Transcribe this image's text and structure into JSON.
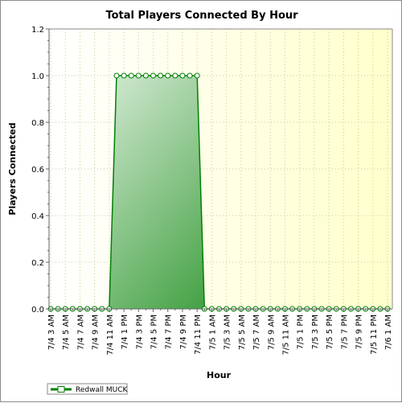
{
  "chart_data": {
    "type": "area",
    "title": "Total Players Connected By Hour",
    "xlabel": "Hour",
    "ylabel": "Players Connected",
    "ylim": [
      0,
      1.2
    ],
    "yticks": [
      "0.0",
      "0.2",
      "0.4",
      "0.6",
      "0.8",
      "1.0",
      "1.2"
    ],
    "grid": true,
    "legend_position": "bottom-left",
    "x": [
      "7/4 3 AM",
      "7/4 4 AM",
      "7/4 5 AM",
      "7/4 6 AM",
      "7/4 7 AM",
      "7/4 8 AM",
      "7/4 9 AM",
      "7/4 10 AM",
      "7/4 11 AM",
      "7/4 12 PM",
      "7/4 1 PM",
      "7/4 2 PM",
      "7/4 3 PM",
      "7/4 4 PM",
      "7/4 5 PM",
      "7/4 6 PM",
      "7/4 7 PM",
      "7/4 8 PM",
      "7/4 9 PM",
      "7/4 10 PM",
      "7/4 11 PM",
      "7/5 12 AM",
      "7/5 1 AM",
      "7/5 2 AM",
      "7/5 3 AM",
      "7/5 4 AM",
      "7/5 5 AM",
      "7/5 6 AM",
      "7/5 7 AM",
      "7/5 8 AM",
      "7/5 9 AM",
      "7/5 10 AM",
      "7/5 11 AM",
      "7/5 12 PM",
      "7/5 1 PM",
      "7/5 2 PM",
      "7/5 3 PM",
      "7/5 4 PM",
      "7/5 5 PM",
      "7/5 6 PM",
      "7/5 7 PM",
      "7/5 8 PM",
      "7/5 9 PM",
      "7/5 10 PM",
      "7/5 11 PM",
      "7/6 12 AM",
      "7/6 1 AM"
    ],
    "xtick_labels": [
      "7/4 3 AM",
      "7/4 5 AM",
      "7/4 7 AM",
      "7/4 9 AM",
      "7/4 11 AM",
      "7/4 1 PM",
      "7/4 3 PM",
      "7/4 5 PM",
      "7/4 7 PM",
      "7/4 9 PM",
      "7/4 11 PM",
      "7/5 1 AM",
      "7/5 3 AM",
      "7/5 5 AM",
      "7/5 7 AM",
      "7/5 9 AM",
      "7/5 11 AM",
      "7/5 1 PM",
      "7/5 3 PM",
      "7/5 5 PM",
      "7/5 7 PM",
      "7/5 9 PM",
      "7/5 11 PM",
      "7/6 1 AM"
    ],
    "series": [
      {
        "name": "Redwall MUCK",
        "color": "#008000",
        "values": [
          0,
          0,
          0,
          0,
          0,
          0,
          0,
          0,
          0,
          1,
          1,
          1,
          1,
          1,
          1,
          1,
          1,
          1,
          1,
          1,
          1,
          0,
          0,
          0,
          0,
          0,
          0,
          0,
          0,
          0,
          0,
          0,
          0,
          0,
          0,
          0,
          0,
          0,
          0,
          0,
          0,
          0,
          0,
          0,
          0,
          0,
          0
        ]
      }
    ]
  }
}
